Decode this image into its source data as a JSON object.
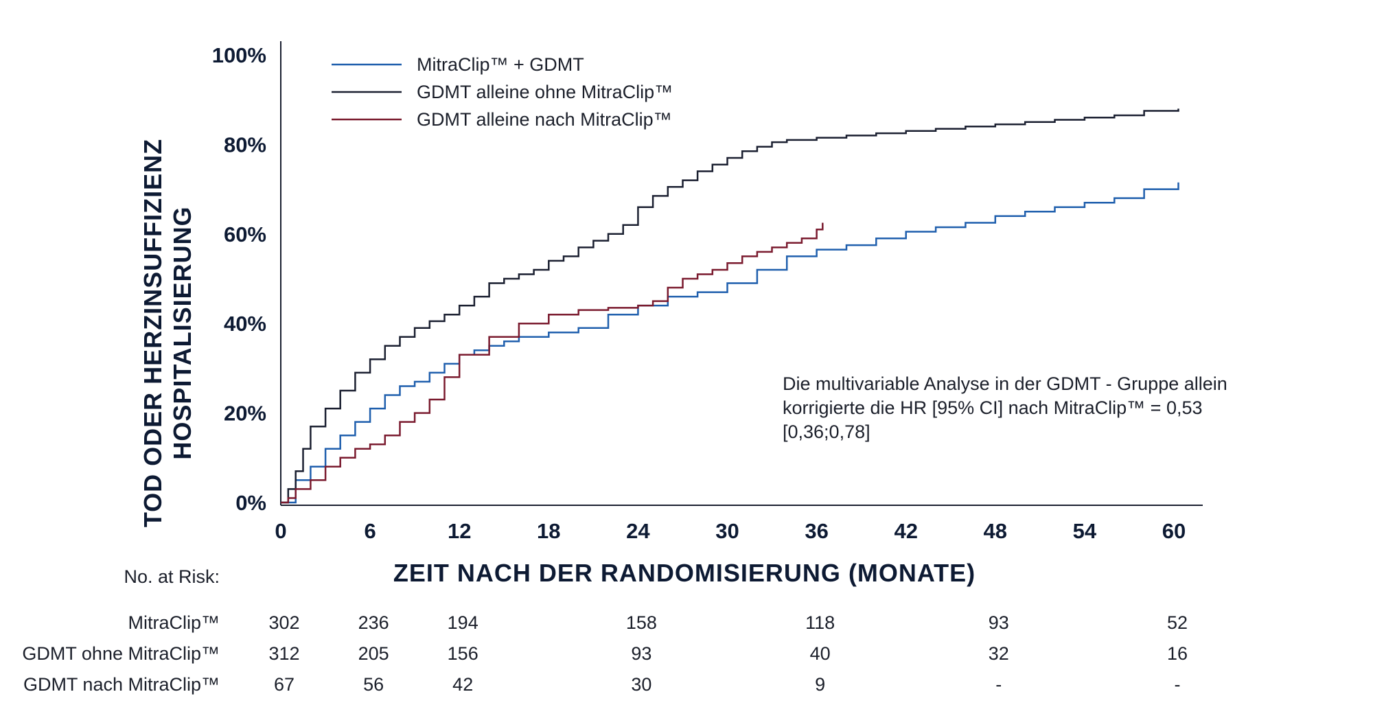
{
  "chart_data": {
    "type": "line",
    "xlabel": "ZEIT NACH DER RANDOMISIERUNG (MONATE)",
    "ylabel": [
      "TOD ODER HERZINSUFFIZIENZ",
      "HOSPITALISIERUNG"
    ],
    "xlim": [
      0,
      62
    ],
    "ylim": [
      0,
      100
    ],
    "x_ticks": [
      0,
      6,
      12,
      18,
      24,
      30,
      36,
      42,
      48,
      54,
      60
    ],
    "y_ticks": [
      0,
      20,
      40,
      60,
      80,
      100
    ],
    "y_tick_labels": [
      "0%",
      "20%",
      "40%",
      "60%",
      "80%",
      "100%"
    ],
    "grid": false,
    "legend_position": "top-left",
    "series": [
      {
        "name": "MitraClip™ + GDMT",
        "color": "#1f5fad",
        "x": [
          0,
          1,
          2,
          3,
          4,
          5,
          6,
          7,
          8,
          9,
          10,
          11,
          12,
          13,
          14,
          15,
          16,
          18,
          20,
          22,
          24,
          26,
          28,
          30,
          32,
          34,
          36,
          38,
          40,
          42,
          44,
          46,
          48,
          50,
          52,
          54,
          56,
          58,
          60.3
        ],
        "y": [
          0,
          5,
          8,
          12,
          15,
          18,
          21,
          24,
          26,
          27,
          29,
          31,
          33,
          34,
          35,
          36,
          37,
          38,
          39,
          42,
          44,
          46,
          47,
          49,
          52,
          55,
          56.5,
          57.5,
          59,
          60.5,
          61.5,
          62.5,
          64,
          65,
          66,
          67,
          68,
          70,
          71.5
        ]
      },
      {
        "name": "GDMT alleine ohne MitraClip™",
        "color": "#1a1f30",
        "x": [
          0,
          0.5,
          1,
          1.5,
          2,
          3,
          4,
          5,
          6,
          7,
          8,
          9,
          10,
          11,
          12,
          13,
          14,
          15,
          16,
          17,
          18,
          19,
          20,
          21,
          22,
          23,
          24,
          25,
          26,
          27,
          28,
          29,
          30,
          31,
          32,
          33,
          34,
          36,
          38,
          40,
          42,
          44,
          46,
          48,
          50,
          52,
          54,
          56,
          58,
          60.3
        ],
        "y": [
          0,
          3,
          7,
          12,
          17,
          21,
          25,
          29,
          32,
          35,
          37,
          39,
          40.5,
          42,
          44,
          46,
          49,
          50,
          51,
          52,
          54,
          55,
          57,
          58.5,
          60,
          62,
          66,
          68.5,
          70.5,
          72,
          74,
          75.5,
          77,
          78.5,
          79.5,
          80.5,
          81,
          81.5,
          82,
          82.5,
          83,
          83.5,
          84,
          84.5,
          85,
          85.5,
          86,
          86.5,
          87.5,
          88
        ]
      },
      {
        "name": "GDMT alleine nach MitraClip™",
        "color": "#7a1a2e",
        "x": [
          0,
          0.5,
          1,
          2,
          3,
          4,
          5,
          6,
          7,
          8,
          9,
          10,
          11,
          12,
          14,
          16,
          18,
          20,
          22,
          24,
          25,
          26,
          27,
          28,
          29,
          30,
          31,
          32,
          33,
          34,
          35,
          36,
          36.4
        ],
        "y": [
          0,
          1,
          3,
          5,
          8,
          10,
          12,
          13,
          15,
          18,
          20,
          23,
          28,
          33,
          37,
          40,
          42,
          43,
          43.5,
          44,
          45,
          48,
          50,
          51,
          52,
          53.5,
          55,
          56,
          57,
          58,
          59,
          61,
          62.5
        ]
      }
    ]
  },
  "annotation": {
    "lines": [
      "Die multivariable Analyse in der GDMT - Gruppe allein",
      "korrigierte die HR [95% CI] nach MitraClip™ = 0,53",
      "[0,36;0,78]"
    ]
  },
  "risk_table": {
    "title": "No. at Risk:",
    "time_points": [
      0,
      6,
      12,
      24,
      36,
      48,
      60
    ],
    "rows": [
      {
        "label": "MitraClip™",
        "values": [
          "302",
          "236",
          "194",
          "158",
          "118",
          "93",
          "52"
        ]
      },
      {
        "label": "GDMT ohne MitraClip™",
        "values": [
          "312",
          "205",
          "156",
          "93",
          "40",
          "32",
          "16"
        ]
      },
      {
        "label": "GDMT nach MitraClip™",
        "values": [
          "67",
          "56",
          "42",
          "30",
          "9",
          "-",
          "-"
        ]
      }
    ]
  }
}
